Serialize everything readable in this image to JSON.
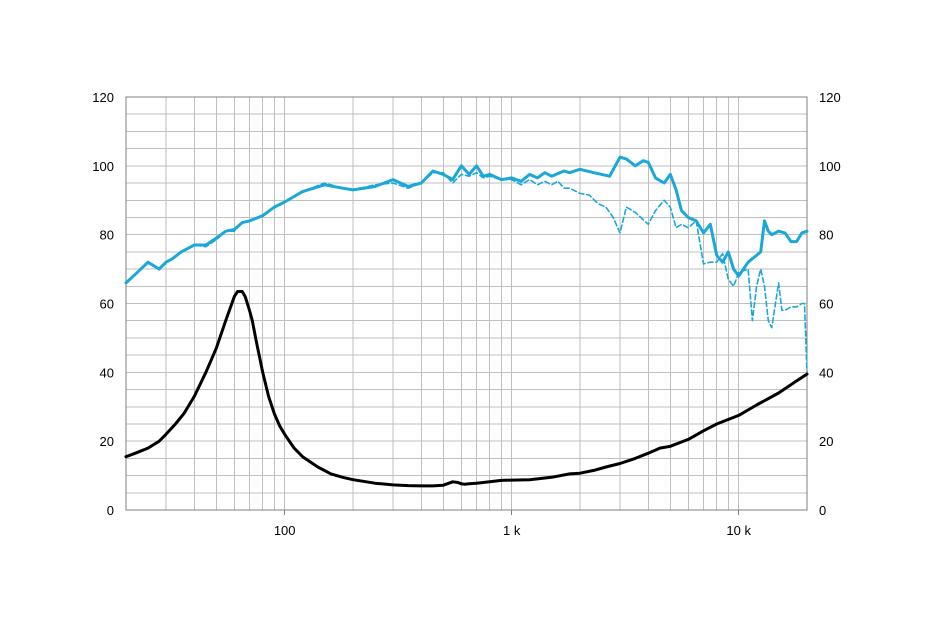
{
  "chart_data": {
    "type": "line",
    "title": "",
    "xlabel": "",
    "ylabel": "",
    "x_scale": "log",
    "xlim": [
      20,
      20000
    ],
    "ylim": [
      0,
      120
    ],
    "y_ticks": [
      0,
      20,
      40,
      60,
      80,
      100,
      120
    ],
    "y_tick_labels": [
      "0",
      "20",
      "40",
      "60",
      "80",
      "100",
      "120"
    ],
    "y_tick_labels_right": [
      "0",
      "20",
      "40",
      "60",
      "80",
      "100",
      "120"
    ],
    "x_ticks": [
      100,
      1000,
      10000
    ],
    "x_tick_labels": [
      "100",
      "1 k",
      "10 k"
    ],
    "grid": true,
    "legend": "none",
    "colors": {
      "grid": "#bfbfbf",
      "axis": "#7f7f7f",
      "response_solid": "#1ba8d8",
      "response_dashed": "#1ba8d8",
      "impedance": "#000000"
    },
    "series": [
      {
        "style": "solid",
        "color": "#1ba8d8",
        "x": [
          20,
          22,
          25,
          28,
          30,
          32,
          35,
          40,
          45,
          50,
          55,
          60,
          65,
          70,
          80,
          90,
          100,
          120,
          150,
          180,
          200,
          250,
          300,
          350,
          400,
          450,
          500,
          550,
          600,
          650,
          700,
          750,
          800,
          900,
          1000,
          1100,
          1200,
          1300,
          1400,
          1500,
          1700,
          1800,
          2000,
          2300,
          2700,
          3000,
          3200,
          3500,
          3800,
          4000,
          4300,
          4700,
          5000,
          5300,
          5600,
          6000,
          6500,
          7000,
          7500,
          8000,
          8500,
          9000,
          9500,
          10000,
          11000,
          12000,
          12500,
          13000,
          13500,
          14000,
          15000,
          16000,
          17000,
          18000,
          19000,
          20000
        ],
        "y": [
          66,
          68.5,
          72,
          70,
          72,
          73,
          75,
          77,
          77,
          79,
          81,
          81.5,
          83.5,
          84,
          85.5,
          88,
          89.5,
          92.5,
          94.5,
          93.5,
          93,
          94,
          96,
          94,
          95,
          98.5,
          97.5,
          96,
          100,
          97.5,
          100,
          97,
          97.5,
          96,
          96.5,
          95.5,
          97.5,
          96.5,
          98,
          97,
          98.5,
          98,
          99,
          98,
          97,
          102.5,
          102,
          100,
          101.5,
          101,
          96.5,
          95,
          97.5,
          93,
          87,
          85,
          84,
          80.5,
          83,
          74,
          72,
          75,
          70,
          68,
          72,
          74,
          75,
          84,
          81,
          80,
          81,
          80.5,
          78,
          78,
          80.5,
          81
        ]
      },
      {
        "style": "dashed",
        "color": "#1ba8d8",
        "x": [
          20,
          22,
          25,
          28,
          30,
          32,
          35,
          40,
          45,
          50,
          55,
          60,
          65,
          70,
          80,
          90,
          100,
          120,
          150,
          180,
          200,
          250,
          300,
          350,
          400,
          450,
          500,
          550,
          600,
          650,
          700,
          750,
          800,
          900,
          1000,
          1100,
          1200,
          1300,
          1400,
          1500,
          1600,
          1700,
          1800,
          2000,
          2200,
          2400,
          2600,
          2800,
          3000,
          3200,
          3500,
          4000,
          4300,
          4700,
          5000,
          5300,
          5600,
          6000,
          6500,
          7000,
          7500,
          8000,
          8500,
          9000,
          9500,
          10000,
          11000,
          11500,
          12000,
          12500,
          13000,
          13500,
          14000,
          15000,
          15500,
          16000,
          17000,
          18000,
          19000,
          19500,
          20000
        ],
        "y": [
          66,
          68.5,
          72,
          70,
          72,
          73,
          75,
          77,
          76.5,
          78.5,
          81,
          81,
          83.5,
          84,
          85.5,
          88,
          89.5,
          92.5,
          95,
          93.5,
          93,
          94.5,
          95,
          93.5,
          95,
          98,
          98,
          95,
          97.5,
          97,
          98,
          96.5,
          97,
          96,
          96,
          94.5,
          96,
          94.5,
          95.5,
          94.5,
          95.5,
          93.5,
          93.5,
          92,
          91.5,
          89,
          88,
          85,
          80.5,
          88,
          86.5,
          83,
          87,
          90,
          88,
          82,
          83,
          82,
          84,
          71.5,
          72,
          72,
          74.5,
          67,
          65,
          69,
          70,
          55,
          65,
          70,
          65,
          55,
          53,
          66,
          58,
          58,
          59,
          59,
          60,
          60,
          40
        ]
      },
      {
        "style": "solid",
        "color": "#000000",
        "x": [
          20,
          22,
          25,
          28,
          30,
          33,
          36,
          40,
          45,
          50,
          55,
          60,
          62,
          65,
          67,
          70,
          72,
          75,
          80,
          85,
          90,
          95,
          100,
          110,
          120,
          140,
          160,
          180,
          200,
          250,
          300,
          350,
          400,
          450,
          500,
          550,
          580,
          600,
          620,
          650,
          700,
          800,
          900,
          1000,
          1200,
          1500,
          1800,
          2000,
          2300,
          2600,
          3000,
          3500,
          4000,
          4500,
          5000,
          6000,
          7000,
          8000,
          10000,
          12000,
          15000,
          18000,
          20000
        ],
        "y": [
          15.5,
          16.5,
          18,
          20,
          22,
          25,
          28,
          33,
          40,
          47,
          55,
          62,
          63.5,
          63.5,
          62,
          58,
          55,
          49,
          40,
          33,
          28,
          24.5,
          22,
          18,
          15.5,
          12.5,
          10.5,
          9.5,
          8.8,
          7.8,
          7.3,
          7.1,
          7.0,
          7.0,
          7.2,
          8.2,
          8.0,
          7.6,
          7.5,
          7.6,
          7.8,
          8.2,
          8.6,
          8.7,
          8.8,
          9.5,
          10.5,
          10.7,
          11.5,
          12.5,
          13.5,
          15,
          16.5,
          18,
          18.5,
          20.5,
          23,
          25,
          27.5,
          30.5,
          34,
          37.5,
          39.5
        ]
      }
    ]
  }
}
